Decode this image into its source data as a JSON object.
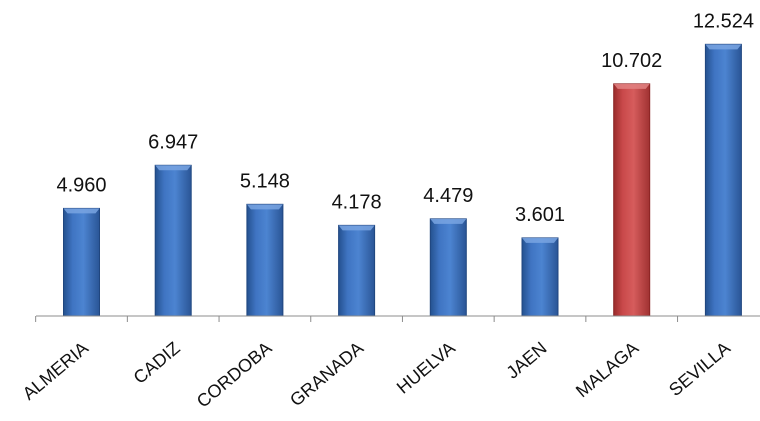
{
  "chart_data": {
    "type": "bar",
    "categories": [
      "ALMERIA",
      "CADIZ",
      "CORDOBA",
      "GRANADA",
      "HUELVA",
      "JAEN",
      "MALAGA",
      "SEVILLA"
    ],
    "values": [
      4960,
      6947,
      5148,
      4178,
      4479,
      3601,
      10702,
      12524
    ],
    "data_labels": [
      "4.960",
      "6.947",
      "5.148",
      "4.178",
      "4.479",
      "3.601",
      "10.702",
      "12.524"
    ],
    "highlight_category": "MALAGA",
    "colors": {
      "bar": "#3f74c2",
      "bar_dark": "#20467f",
      "bar_light": "#79a5e2",
      "highlight": "#c9494a",
      "highlight_dark": "#8a2424",
      "highlight_light": "#e28383",
      "axis": "#8c8c8c"
    },
    "ylim": [
      0,
      13000
    ],
    "grid": false,
    "legend": "none",
    "title": "",
    "xlabel": "",
    "ylabel": ""
  }
}
